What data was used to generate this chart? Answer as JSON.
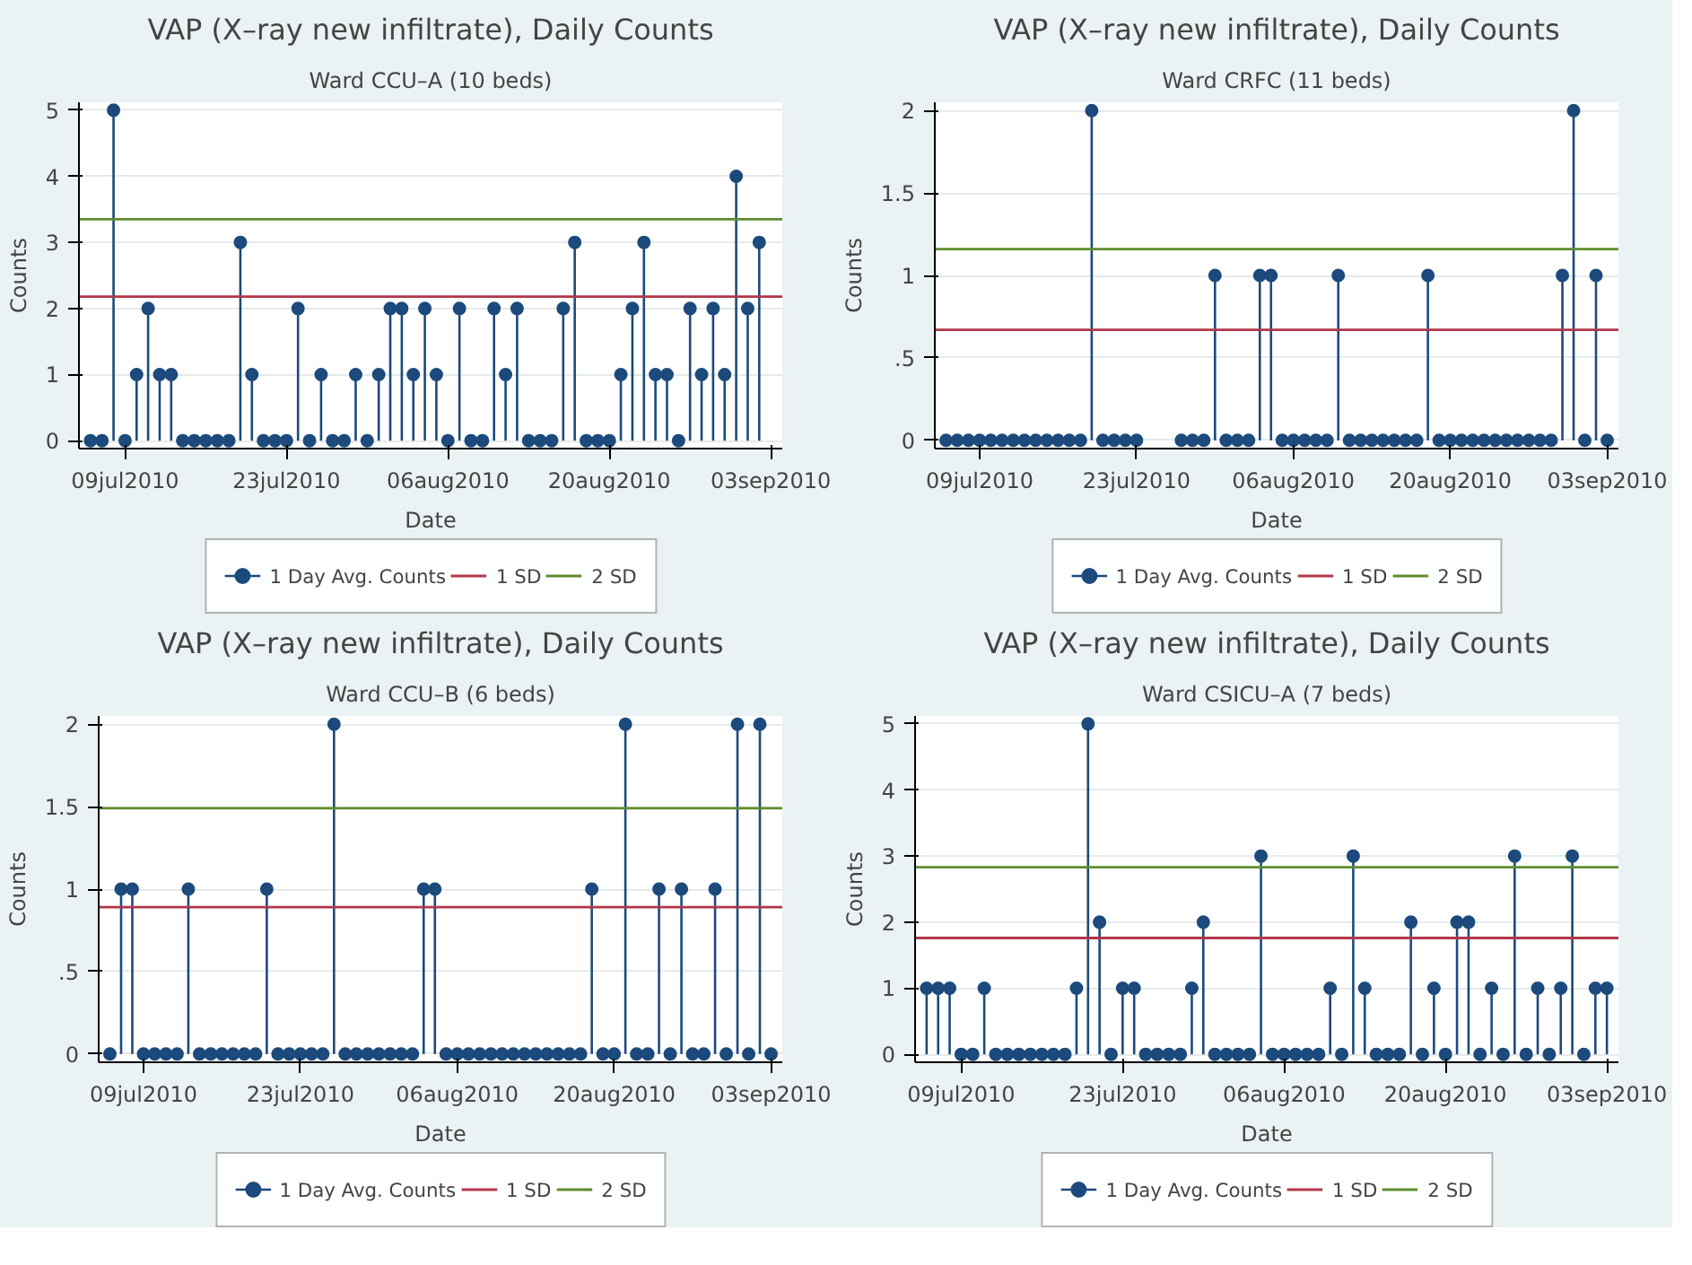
{
  "chart_data": [
    {
      "type": "lollipop",
      "title": "VAP (X–ray new infiltrate), Daily Counts",
      "subtitle": "Ward CCU–A (10 beds)",
      "xlabel": "Date",
      "ylabel": "Counts",
      "x": [
        "2010-07-06",
        "2010-07-07",
        "2010-07-08",
        "2010-07-09",
        "2010-07-10",
        "2010-07-11",
        "2010-07-12",
        "2010-07-13",
        "2010-07-14",
        "2010-07-15",
        "2010-07-16",
        "2010-07-17",
        "2010-07-18",
        "2010-07-19",
        "2010-07-20",
        "2010-07-21",
        "2010-07-22",
        "2010-07-23",
        "2010-07-24",
        "2010-07-25",
        "2010-07-26",
        "2010-07-27",
        "2010-07-28",
        "2010-07-29",
        "2010-07-30",
        "2010-07-31",
        "2010-08-01",
        "2010-08-02",
        "2010-08-03",
        "2010-08-04",
        "2010-08-05",
        "2010-08-06",
        "2010-08-07",
        "2010-08-08",
        "2010-08-09",
        "2010-08-10",
        "2010-08-11",
        "2010-08-12",
        "2010-08-13",
        "2010-08-14",
        "2010-08-15",
        "2010-08-16",
        "2010-08-17",
        "2010-08-18",
        "2010-08-19",
        "2010-08-20",
        "2010-08-21",
        "2010-08-22",
        "2010-08-23",
        "2010-08-24",
        "2010-08-25",
        "2010-08-26",
        "2010-08-27",
        "2010-08-28",
        "2010-08-29",
        "2010-08-30",
        "2010-08-31",
        "2010-09-01",
        "2010-09-02"
      ],
      "series": [
        {
          "name": "1 Day Avg. Counts",
          "color": "#1c4a7c",
          "values": [
            0,
            0,
            5,
            0,
            1,
            2,
            1,
            1,
            0,
            0,
            0,
            0,
            0,
            3,
            1,
            0,
            0,
            0,
            2,
            0,
            1,
            0,
            0,
            1,
            0,
            1,
            2,
            2,
            1,
            2,
            1,
            0,
            2,
            0,
            0,
            2,
            1,
            2,
            0,
            0,
            0,
            2,
            3,
            0,
            0,
            0,
            1,
            2,
            3,
            1,
            1,
            0,
            2,
            1,
            2,
            1,
            4,
            2,
            3
          ]
        }
      ],
      "ref_lines": [
        {
          "axis": "y",
          "value": 2.18,
          "label": "1 SD",
          "color": "#b0374a"
        },
        {
          "axis": "y",
          "value": 3.35,
          "label": "2 SD",
          "color": "#5e8c2e"
        }
      ],
      "xlim": [
        "2010-07-05",
        "2010-09-04"
      ],
      "xticks": [
        {
          "value": "2010-07-09",
          "label": "09jul2010"
        },
        {
          "value": "2010-07-23",
          "label": "23jul2010"
        },
        {
          "value": "2010-08-06",
          "label": "06aug2010"
        },
        {
          "value": "2010-08-20",
          "label": "20aug2010"
        },
        {
          "value": "2010-09-03",
          "label": "03sep2010"
        }
      ],
      "ylim": [
        -0.12,
        5.12
      ],
      "yticks": [
        0,
        1,
        2,
        3,
        4,
        5
      ],
      "grid": "y",
      "legend": "bottom",
      "marker": "circle"
    },
    {
      "type": "lollipop",
      "title": "VAP (X–ray new infiltrate), Daily Counts",
      "subtitle": "Ward CRFC (11 beds)",
      "xlabel": "Date",
      "ylabel": "Counts",
      "x": [
        "2010-07-06",
        "2010-07-07",
        "2010-07-08",
        "2010-07-09",
        "2010-07-10",
        "2010-07-11",
        "2010-07-12",
        "2010-07-13",
        "2010-07-14",
        "2010-07-15",
        "2010-07-16",
        "2010-07-17",
        "2010-07-18",
        "2010-07-19",
        "2010-07-20",
        "2010-07-21",
        "2010-07-22",
        "2010-07-23",
        "2010-07-24",
        "2010-07-25",
        "2010-07-26",
        "2010-07-27",
        "2010-07-28",
        "2010-07-29",
        "2010-07-30",
        "2010-07-31",
        "2010-08-01",
        "2010-08-02",
        "2010-08-03",
        "2010-08-04",
        "2010-08-05",
        "2010-08-06",
        "2010-08-07",
        "2010-08-08",
        "2010-08-09",
        "2010-08-10",
        "2010-08-11",
        "2010-08-12",
        "2010-08-13",
        "2010-08-14",
        "2010-08-15",
        "2010-08-16",
        "2010-08-17",
        "2010-08-18",
        "2010-08-19",
        "2010-08-20",
        "2010-08-21",
        "2010-08-22",
        "2010-08-23",
        "2010-08-24",
        "2010-08-25",
        "2010-08-26",
        "2010-08-27",
        "2010-08-28",
        "2010-08-29",
        "2010-08-30",
        "2010-08-31",
        "2010-09-01",
        "2010-09-02",
        "2010-09-03"
      ],
      "series": [
        {
          "name": "1 Day Avg. Counts",
          "color": "#1c4a7c",
          "values": [
            0,
            0,
            0,
            0,
            0,
            0,
            0,
            0,
            0,
            0,
            0,
            0,
            0,
            2,
            0,
            0,
            0,
            0,
            null,
            null,
            null,
            0,
            0,
            0,
            1,
            0,
            0,
            0,
            1,
            1,
            0,
            0,
            0,
            0,
            0,
            1,
            0,
            0,
            0,
            0,
            0,
            0,
            0,
            1,
            0,
            0,
            0,
            0,
            0,
            0,
            0,
            0,
            0,
            0,
            0,
            1,
            2,
            0,
            1,
            0
          ]
        }
      ],
      "ref_lines": [
        {
          "axis": "y",
          "value": 0.67,
          "label": "1 SD",
          "color": "#b0374a"
        },
        {
          "axis": "y",
          "value": 1.16,
          "label": "2 SD",
          "color": "#5e8c2e"
        }
      ],
      "xlim": [
        "2010-07-05",
        "2010-09-04"
      ],
      "xticks": [
        {
          "value": "2010-07-09",
          "label": "09jul2010"
        },
        {
          "value": "2010-07-23",
          "label": "23jul2010"
        },
        {
          "value": "2010-08-06",
          "label": "06aug2010"
        },
        {
          "value": "2010-08-20",
          "label": "20aug2010"
        },
        {
          "value": "2010-09-03",
          "label": "03sep2010"
        }
      ],
      "ylim": [
        -0.05,
        2.05
      ],
      "yticks": [
        0,
        {
          "value": 0.5,
          "label": ".5"
        },
        1,
        1.5,
        2
      ],
      "grid": "y",
      "legend": "bottom",
      "marker": "circle"
    },
    {
      "type": "lollipop",
      "title": "VAP (X–ray new infiltrate), Daily Counts",
      "subtitle": "Ward CCU–B (6 beds)",
      "xlabel": "Date",
      "ylabel": "Counts",
      "x": [
        "2010-07-06",
        "2010-07-07",
        "2010-07-08",
        "2010-07-09",
        "2010-07-10",
        "2010-07-11",
        "2010-07-12",
        "2010-07-13",
        "2010-07-14",
        "2010-07-15",
        "2010-07-16",
        "2010-07-17",
        "2010-07-18",
        "2010-07-19",
        "2010-07-20",
        "2010-07-21",
        "2010-07-22",
        "2010-07-23",
        "2010-07-24",
        "2010-07-25",
        "2010-07-26",
        "2010-07-27",
        "2010-07-28",
        "2010-07-29",
        "2010-07-30",
        "2010-07-31",
        "2010-08-01",
        "2010-08-02",
        "2010-08-03",
        "2010-08-04",
        "2010-08-05",
        "2010-08-06",
        "2010-08-07",
        "2010-08-08",
        "2010-08-09",
        "2010-08-10",
        "2010-08-11",
        "2010-08-12",
        "2010-08-13",
        "2010-08-14",
        "2010-08-15",
        "2010-08-16",
        "2010-08-17",
        "2010-08-18",
        "2010-08-19",
        "2010-08-20",
        "2010-08-21",
        "2010-08-22",
        "2010-08-23",
        "2010-08-24",
        "2010-08-25",
        "2010-08-26",
        "2010-08-27",
        "2010-08-28",
        "2010-08-29",
        "2010-08-30",
        "2010-08-31",
        "2010-09-01",
        "2010-09-02",
        "2010-09-03"
      ],
      "series": [
        {
          "name": "1 Day Avg. Counts",
          "color": "#1c4a7c",
          "values": [
            0,
            1,
            1,
            0,
            0,
            0,
            0,
            1,
            0,
            0,
            0,
            0,
            0,
            0,
            1,
            0,
            0,
            0,
            0,
            0,
            2,
            0,
            0,
            0,
            0,
            0,
            0,
            0,
            1,
            1,
            0,
            0,
            0,
            0,
            0,
            0,
            0,
            0,
            0,
            0,
            0,
            0,
            0,
            1,
            0,
            0,
            2,
            0,
            0,
            1,
            0,
            1,
            0,
            0,
            1,
            0,
            2,
            0,
            2,
            0
          ]
        }
      ],
      "ref_lines": [
        {
          "axis": "y",
          "value": 0.89,
          "label": "1 SD",
          "color": "#b0374a"
        },
        {
          "axis": "y",
          "value": 1.49,
          "label": "2 SD",
          "color": "#5e8c2e"
        }
      ],
      "xlim": [
        "2010-07-05",
        "2010-09-04"
      ],
      "xticks": [
        {
          "value": "2010-07-09",
          "label": "09jul2010"
        },
        {
          "value": "2010-07-23",
          "label": "23jul2010"
        },
        {
          "value": "2010-08-06",
          "label": "06aug2010"
        },
        {
          "value": "2010-08-20",
          "label": "20aug2010"
        },
        {
          "value": "2010-09-03",
          "label": "03sep2010"
        }
      ],
      "ylim": [
        -0.05,
        2.05
      ],
      "yticks": [
        0,
        {
          "value": 0.5,
          "label": ".5"
        },
        1,
        1.5,
        2
      ],
      "grid": "y",
      "legend": "bottom",
      "marker": "circle"
    },
    {
      "type": "lollipop",
      "title": "VAP (X–ray new infiltrate), Daily Counts",
      "subtitle": "Ward CSICU–A (7 beds)",
      "xlabel": "Date",
      "ylabel": "Counts",
      "x": [
        "2010-07-06",
        "2010-07-07",
        "2010-07-08",
        "2010-07-09",
        "2010-07-10",
        "2010-07-11",
        "2010-07-12",
        "2010-07-13",
        "2010-07-14",
        "2010-07-15",
        "2010-07-16",
        "2010-07-17",
        "2010-07-18",
        "2010-07-19",
        "2010-07-20",
        "2010-07-21",
        "2010-07-22",
        "2010-07-23",
        "2010-07-24",
        "2010-07-25",
        "2010-07-26",
        "2010-07-27",
        "2010-07-28",
        "2010-07-29",
        "2010-07-30",
        "2010-07-31",
        "2010-08-01",
        "2010-08-02",
        "2010-08-03",
        "2010-08-04",
        "2010-08-05",
        "2010-08-06",
        "2010-08-07",
        "2010-08-08",
        "2010-08-09",
        "2010-08-10",
        "2010-08-11",
        "2010-08-12",
        "2010-08-13",
        "2010-08-14",
        "2010-08-15",
        "2010-08-16",
        "2010-08-17",
        "2010-08-18",
        "2010-08-19",
        "2010-08-20",
        "2010-08-21",
        "2010-08-22",
        "2010-08-23",
        "2010-08-24",
        "2010-08-25",
        "2010-08-26",
        "2010-08-27",
        "2010-08-28",
        "2010-08-29",
        "2010-08-30",
        "2010-08-31",
        "2010-09-01",
        "2010-09-02",
        "2010-09-03"
      ],
      "series": [
        {
          "name": "1 Day Avg. Counts",
          "color": "#1c4a7c",
          "values": [
            1,
            1,
            1,
            0,
            0,
            1,
            0,
            0,
            0,
            0,
            0,
            0,
            0,
            1,
            5,
            2,
            0,
            1,
            1,
            0,
            0,
            0,
            0,
            1,
            2,
            0,
            0,
            0,
            0,
            3,
            0,
            0,
            0,
            0,
            0,
            1,
            0,
            3,
            1,
            0,
            0,
            0,
            2,
            0,
            1,
            0,
            2,
            2,
            0,
            1,
            0,
            3,
            0,
            1,
            0,
            1,
            3,
            0,
            1,
            1
          ]
        }
      ],
      "ref_lines": [
        {
          "axis": "y",
          "value": 1.76,
          "label": "1 SD",
          "color": "#b0374a"
        },
        {
          "axis": "y",
          "value": 2.83,
          "label": "2 SD",
          "color": "#5e8c2e"
        }
      ],
      "xlim": [
        "2010-07-05",
        "2010-09-04"
      ],
      "xticks": [
        {
          "value": "2010-07-09",
          "label": "09jul2010"
        },
        {
          "value": "2010-07-23",
          "label": "23jul2010"
        },
        {
          "value": "2010-08-06",
          "label": "06aug2010"
        },
        {
          "value": "2010-08-20",
          "label": "20aug2010"
        },
        {
          "value": "2010-09-03",
          "label": "03sep2010"
        }
      ],
      "ylim": [
        -0.12,
        5.12
      ],
      "yticks": [
        0,
        1,
        2,
        3,
        4,
        5
      ],
      "grid": "y",
      "legend": "bottom",
      "marker": "circle"
    }
  ]
}
